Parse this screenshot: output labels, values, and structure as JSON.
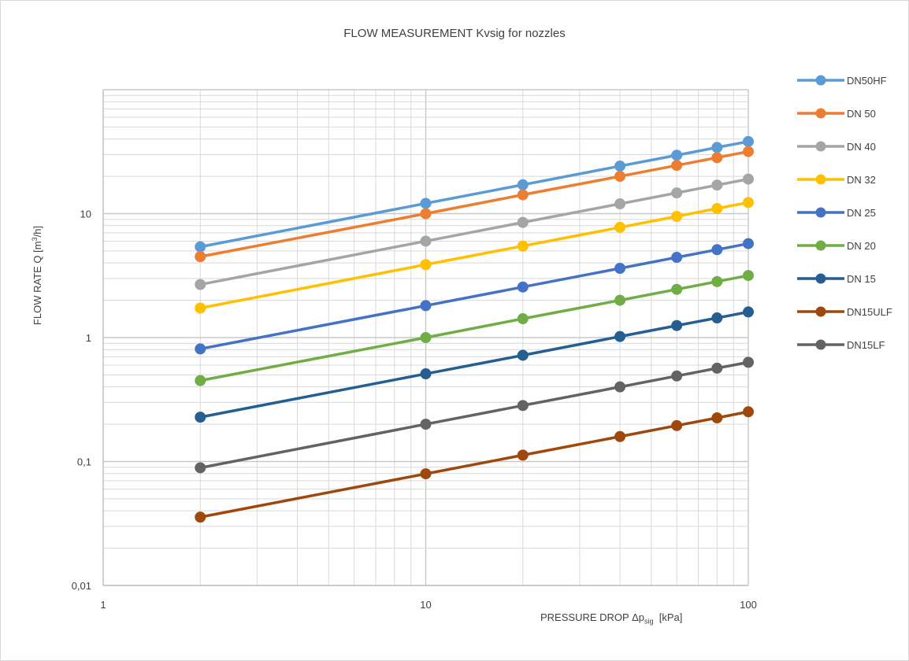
{
  "chart_data": {
    "type": "line",
    "title": "FLOW MEASUREMENT Kvsig for nozzles",
    "xlabel": {
      "prefix": "PRESSURE DROP Δp",
      "sub": "sig",
      "suffix": "  [kPa]"
    },
    "ylabel": {
      "prefix": "FLOW RATE Q  [m",
      "sup": "3",
      "suffix": "/h]"
    },
    "x_scale": "log",
    "y_scale": "log",
    "xlim": [
      1,
      100
    ],
    "ylim": [
      0.01,
      100
    ],
    "x_ticks": [
      {
        "value": 1,
        "label": "1"
      },
      {
        "value": 10,
        "label": "10"
      },
      {
        "value": 100,
        "label": "100"
      }
    ],
    "y_ticks": [
      {
        "value": 0.01,
        "label": "0,01"
      },
      {
        "value": 0.1,
        "label": "0,1"
      },
      {
        "value": 1,
        "label": "1"
      },
      {
        "value": 10,
        "label": "10"
      }
    ],
    "grid": true,
    "legend_position": "right",
    "x": [
      2,
      10,
      20,
      40,
      60,
      80,
      100
    ],
    "series": [
      {
        "name": "DN50HF",
        "color": "#5b9bd5",
        "values": [
          5.4,
          12.1,
          17.1,
          24.2,
          29.6,
          34.2,
          38.2
        ]
      },
      {
        "name": "DN 50",
        "color": "#ed7d31",
        "values": [
          4.5,
          10.0,
          14.2,
          20.0,
          24.5,
          28.3,
          31.7
        ]
      },
      {
        "name": "DN 40",
        "color": "#a5a5a5",
        "values": [
          2.68,
          6.0,
          8.5,
          12.0,
          14.7,
          17.0,
          19.0
        ]
      },
      {
        "name": "DN 32",
        "color": "#ffc000",
        "values": [
          1.73,
          3.88,
          5.48,
          7.75,
          9.5,
          11.0,
          12.3
        ]
      },
      {
        "name": "DN 25",
        "color": "#4472c4",
        "values": [
          0.81,
          1.81,
          2.56,
          3.62,
          4.44,
          5.12,
          5.73
        ]
      },
      {
        "name": "DN 20",
        "color": "#70ad47",
        "values": [
          0.45,
          1.0,
          1.42,
          2.0,
          2.45,
          2.83,
          3.17
        ]
      },
      {
        "name": "DN 15",
        "color": "#255e91",
        "values": [
          0.228,
          0.51,
          0.72,
          1.02,
          1.25,
          1.44,
          1.61
        ]
      },
      {
        "name": "DN15ULF",
        "color": "#9e480e",
        "values": [
          0.0356,
          0.0796,
          0.1126,
          0.159,
          0.195,
          0.225,
          0.252
        ]
      },
      {
        "name": "DN15LF",
        "color": "#636363",
        "values": [
          0.089,
          0.2,
          0.283,
          0.4,
          0.49,
          0.566,
          0.632
        ]
      }
    ]
  }
}
